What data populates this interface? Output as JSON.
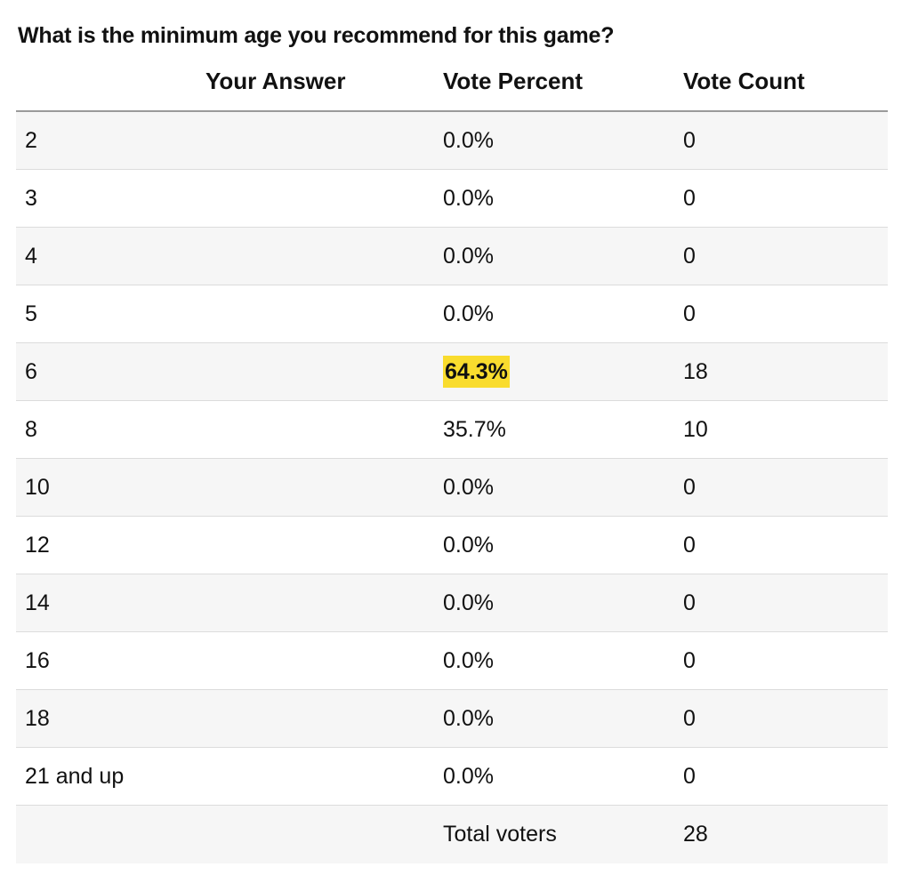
{
  "question": "What is the minimum age you recommend for this game?",
  "headers": {
    "answer": "Your Answer",
    "percent": "Vote Percent",
    "count": "Vote Count"
  },
  "highlight_color": "#f9dc2e",
  "rows": [
    {
      "answer": "2",
      "percent": "0.0%",
      "count": "0"
    },
    {
      "answer": "3",
      "percent": "0.0%",
      "count": "0"
    },
    {
      "answer": "4",
      "percent": "0.0%",
      "count": "0"
    },
    {
      "answer": "5",
      "percent": "0.0%",
      "count": "0"
    },
    {
      "answer": "6",
      "percent": "64.3%",
      "count": "18",
      "highlighted": true
    },
    {
      "answer": "8",
      "percent": "35.7%",
      "count": "10"
    },
    {
      "answer": "10",
      "percent": "0.0%",
      "count": "0"
    },
    {
      "answer": "12",
      "percent": "0.0%",
      "count": "0"
    },
    {
      "answer": "14",
      "percent": "0.0%",
      "count": "0"
    },
    {
      "answer": "16",
      "percent": "0.0%",
      "count": "0"
    },
    {
      "answer": "18",
      "percent": "0.0%",
      "count": "0"
    },
    {
      "answer": "21 and up",
      "percent": "0.0%",
      "count": "0"
    }
  ],
  "total": {
    "label": "Total voters",
    "count": "28"
  }
}
